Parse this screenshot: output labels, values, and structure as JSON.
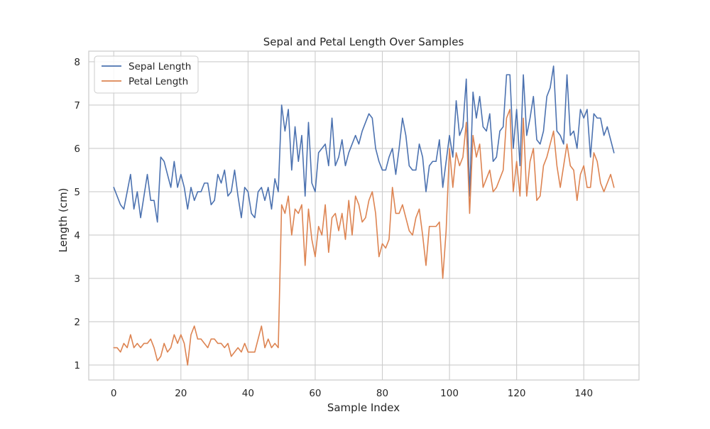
{
  "chart_data": {
    "type": "line",
    "title": "Sepal and Petal Length Over Samples",
    "xlabel": "Sample Index",
    "ylabel": "Length (cm)",
    "xlim": [
      -7.45,
      156.45
    ],
    "ylim": [
      0.655,
      8.245
    ],
    "xticks": [
      0,
      20,
      40,
      60,
      80,
      100,
      120,
      140
    ],
    "yticks": [
      1,
      2,
      3,
      4,
      5,
      6,
      7,
      8
    ],
    "grid": true,
    "legend_position": "upper left",
    "x": [
      0,
      1,
      2,
      3,
      4,
      5,
      6,
      7,
      8,
      9,
      10,
      11,
      12,
      13,
      14,
      15,
      16,
      17,
      18,
      19,
      20,
      21,
      22,
      23,
      24,
      25,
      26,
      27,
      28,
      29,
      30,
      31,
      32,
      33,
      34,
      35,
      36,
      37,
      38,
      39,
      40,
      41,
      42,
      43,
      44,
      45,
      46,
      47,
      48,
      49,
      50,
      51,
      52,
      53,
      54,
      55,
      56,
      57,
      58,
      59,
      60,
      61,
      62,
      63,
      64,
      65,
      66,
      67,
      68,
      69,
      70,
      71,
      72,
      73,
      74,
      75,
      76,
      77,
      78,
      79,
      80,
      81,
      82,
      83,
      84,
      85,
      86,
      87,
      88,
      89,
      90,
      91,
      92,
      93,
      94,
      95,
      96,
      97,
      98,
      99,
      100,
      101,
      102,
      103,
      104,
      105,
      106,
      107,
      108,
      109,
      110,
      111,
      112,
      113,
      114,
      115,
      116,
      117,
      118,
      119,
      120,
      121,
      122,
      123,
      124,
      125,
      126,
      127,
      128,
      129,
      130,
      131,
      132,
      133,
      134,
      135,
      136,
      137,
      138,
      139,
      140,
      141,
      142,
      143,
      144,
      145,
      146,
      147,
      148,
      149
    ],
    "series": [
      {
        "name": "Sepal Length",
        "color": "#4c72b0",
        "values": [
          5.1,
          4.9,
          4.7,
          4.6,
          5.0,
          5.4,
          4.6,
          5.0,
          4.4,
          4.9,
          5.4,
          4.8,
          4.8,
          4.3,
          5.8,
          5.7,
          5.4,
          5.1,
          5.7,
          5.1,
          5.4,
          5.1,
          4.6,
          5.1,
          4.8,
          5.0,
          5.0,
          5.2,
          5.2,
          4.7,
          4.8,
          5.4,
          5.2,
          5.5,
          4.9,
          5.0,
          5.5,
          4.9,
          4.4,
          5.1,
          5.0,
          4.5,
          4.4,
          5.0,
          5.1,
          4.8,
          5.1,
          4.6,
          5.3,
          5.0,
          7.0,
          6.4,
          6.9,
          5.5,
          6.5,
          5.7,
          6.3,
          4.9,
          6.6,
          5.2,
          5.0,
          5.9,
          6.0,
          6.1,
          5.6,
          6.7,
          5.6,
          5.8,
          6.2,
          5.6,
          5.9,
          6.1,
          6.3,
          6.1,
          6.4,
          6.6,
          6.8,
          6.7,
          6.0,
          5.7,
          5.5,
          5.5,
          5.8,
          6.0,
          5.4,
          6.0,
          6.7,
          6.3,
          5.6,
          5.5,
          5.5,
          6.1,
          5.8,
          5.0,
          5.6,
          5.7,
          5.7,
          6.2,
          5.1,
          5.7,
          6.3,
          5.8,
          7.1,
          6.3,
          6.5,
          7.6,
          4.9,
          7.3,
          6.7,
          7.2,
          6.5,
          6.4,
          6.8,
          5.7,
          5.8,
          6.4,
          6.5,
          7.7,
          7.7,
          6.0,
          6.9,
          5.6,
          7.7,
          6.3,
          6.7,
          7.2,
          6.2,
          6.1,
          6.4,
          7.2,
          7.4,
          7.9,
          6.4,
          6.3,
          6.1,
          7.7,
          6.3,
          6.4,
          6.0,
          6.9,
          6.7,
          6.9,
          5.8,
          6.8,
          6.7,
          6.7,
          6.3,
          6.5,
          6.2,
          5.9
        ]
      },
      {
        "name": "Petal Length",
        "color": "#dd8452",
        "values": [
          1.4,
          1.4,
          1.3,
          1.5,
          1.4,
          1.7,
          1.4,
          1.5,
          1.4,
          1.5,
          1.5,
          1.6,
          1.4,
          1.1,
          1.2,
          1.5,
          1.3,
          1.4,
          1.7,
          1.5,
          1.7,
          1.5,
          1.0,
          1.7,
          1.9,
          1.6,
          1.6,
          1.5,
          1.4,
          1.6,
          1.6,
          1.5,
          1.5,
          1.4,
          1.5,
          1.2,
          1.3,
          1.4,
          1.3,
          1.5,
          1.3,
          1.3,
          1.3,
          1.6,
          1.9,
          1.4,
          1.6,
          1.4,
          1.5,
          1.4,
          4.7,
          4.5,
          4.9,
          4.0,
          4.6,
          4.5,
          4.7,
          3.3,
          4.6,
          3.9,
          3.5,
          4.2,
          4.0,
          4.7,
          3.6,
          4.4,
          4.5,
          4.1,
          4.5,
          3.9,
          4.8,
          4.0,
          4.9,
          4.7,
          4.3,
          4.4,
          4.8,
          5.0,
          4.5,
          3.5,
          3.8,
          3.7,
          3.9,
          5.1,
          4.5,
          4.5,
          4.7,
          4.4,
          4.1,
          4.0,
          4.4,
          4.6,
          4.0,
          3.3,
          4.2,
          4.2,
          4.2,
          4.3,
          3.0,
          4.1,
          6.0,
          5.1,
          5.9,
          5.6,
          5.8,
          6.6,
          4.5,
          6.3,
          5.8,
          6.1,
          5.1,
          5.3,
          5.5,
          5.0,
          5.1,
          5.3,
          5.5,
          6.7,
          6.9,
          5.0,
          5.7,
          4.9,
          6.7,
          4.9,
          5.7,
          6.0,
          4.8,
          4.9,
          5.6,
          5.8,
          6.1,
          6.4,
          5.6,
          5.1,
          5.6,
          6.1,
          5.6,
          5.5,
          4.8,
          5.4,
          5.6,
          5.1,
          5.1,
          5.9,
          5.7,
          5.2,
          5.0,
          5.2,
          5.4,
          5.1
        ]
      }
    ]
  }
}
